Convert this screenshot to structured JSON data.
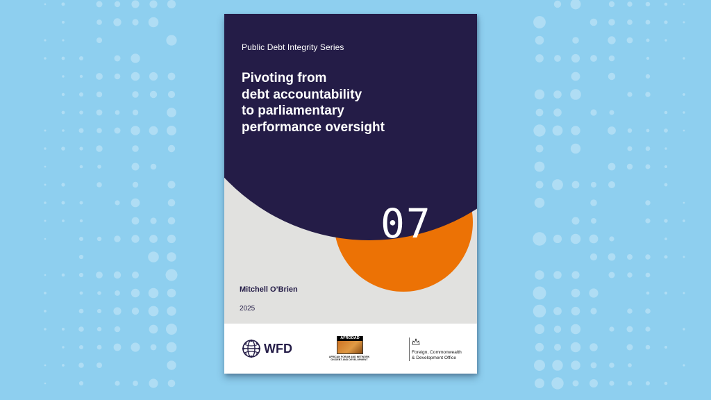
{
  "cover": {
    "series": "Public Debt Integrity Series",
    "title_lines": [
      "Pivoting from",
      "debt accountability",
      "to parliamentary",
      "performance oversight"
    ],
    "number": "07",
    "author": "Mitchell O’Brien",
    "year": "2025"
  },
  "footer": {
    "wfd_label": "WFD",
    "afrodad_name": "AFRODAD",
    "afrodad_tagline": "AFRICAN FORUM AND NETWORK ON DEBT AND DEVELOPMENT",
    "fcdo_line1": "Foreign, Commonwealth",
    "fcdo_line2": "& Development Office"
  },
  "colors": {
    "background": "#8ecfef",
    "navy": "#241c47",
    "orange": "#ec7205",
    "cover_grey": "#e1e1df"
  }
}
